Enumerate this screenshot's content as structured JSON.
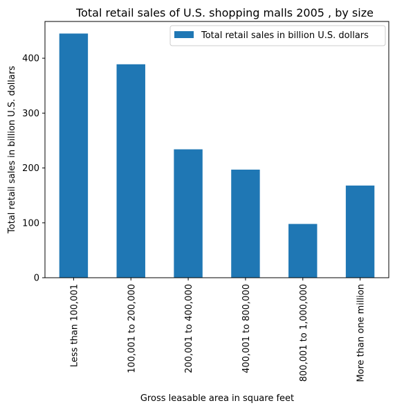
{
  "chart_data": {
    "type": "bar",
    "title": "Total retail sales of U.S. shopping malls 2005 , by size",
    "xlabel": "Gross leasable area in square feet",
    "ylabel": "Total retail sales in billion U.S. dollars",
    "categories": [
      "Less than 100,001",
      "100,001 to 200,000",
      "200,001 to 400,000",
      "400,001 to 800,000",
      "800,001 to 1,000,000",
      "More than one million"
    ],
    "series": [
      {
        "name": "Total retail sales in billion U.S. dollars",
        "values": [
          445,
          389,
          234,
          197,
          98,
          168
        ],
        "color": "#1f77b4"
      }
    ],
    "ylim": [
      0,
      467
    ],
    "yticks": [
      0,
      100,
      200,
      300,
      400
    ],
    "grid": false,
    "legend_position": "top-right"
  }
}
